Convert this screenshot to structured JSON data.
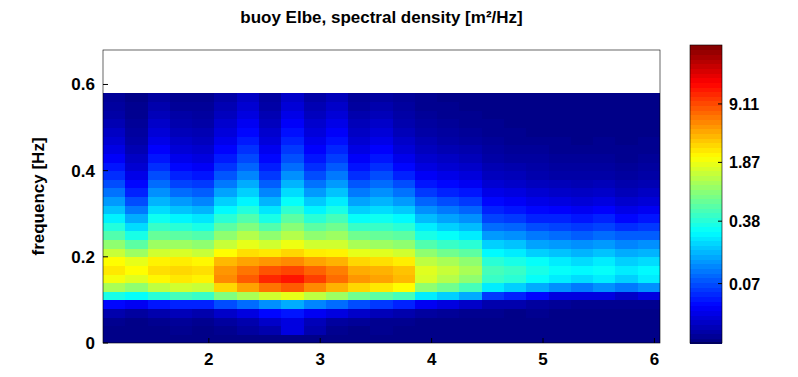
{
  "chart_data": {
    "type": "heatmap",
    "title": "buoy Elbe, spectral density [m²/Hz]",
    "y_label": "frequency [Hz]",
    "xlim": [
      1.05,
      6.05
    ],
    "ylim": [
      0,
      0.68
    ],
    "xticks": [
      2,
      3,
      4,
      5,
      6
    ],
    "yticks": [
      0,
      0.2,
      0.4,
      0.6
    ],
    "x_edges": [
      1.05,
      1.25,
      1.45,
      1.65,
      1.85,
      2.05,
      2.25,
      2.45,
      2.65,
      2.85,
      3.05,
      3.25,
      3.45,
      3.65,
      3.85,
      4.05,
      4.25,
      4.45,
      4.65,
      4.85,
      5.05,
      5.25,
      5.45,
      5.65,
      5.85,
      6.05
    ],
    "y_edges": [
      0,
      0.02,
      0.04,
      0.06,
      0.08,
      0.1,
      0.12,
      0.14,
      0.16,
      0.18,
      0.2,
      0.22,
      0.24,
      0.26,
      0.28,
      0.3,
      0.32,
      0.34,
      0.36,
      0.38,
      0.4,
      0.42,
      0.44,
      0.46,
      0.48,
      0.5,
      0.52,
      0.54,
      0.56,
      0.58
    ],
    "values": [
      [
        0.015,
        0.015,
        0.015,
        0.015,
        0.015,
        0.015,
        0.015,
        0.015,
        0.015,
        0.015,
        0.015,
        0.015,
        0.015,
        0.015,
        0.015,
        0.015,
        0.015,
        0.015,
        0.015,
        0.015,
        0.015,
        0.015,
        0.015,
        0.015,
        0.015
      ],
      [
        0.015,
        0.015,
        0.015,
        0.016,
        0.015,
        0.016,
        0.018,
        0.02,
        0.03,
        0.02,
        0.016,
        0.015,
        0.016,
        0.015,
        0.015,
        0.015,
        0.015,
        0.015,
        0.015,
        0.015,
        0.015,
        0.015,
        0.015,
        0.015,
        0.015
      ],
      [
        0.016,
        0.015,
        0.016,
        0.017,
        0.016,
        0.018,
        0.02,
        0.025,
        0.03,
        0.022,
        0.018,
        0.017,
        0.016,
        0.016,
        0.015,
        0.015,
        0.015,
        0.015,
        0.015,
        0.015,
        0.015,
        0.015,
        0.015,
        0.015,
        0.015
      ],
      [
        0.02,
        0.018,
        0.02,
        0.022,
        0.02,
        0.025,
        0.03,
        0.04,
        0.045,
        0.035,
        0.03,
        0.025,
        0.022,
        0.02,
        0.018,
        0.017,
        0.016,
        0.016,
        0.015,
        0.016,
        0.015,
        0.015,
        0.015,
        0.015,
        0.015
      ],
      [
        0.04,
        0.035,
        0.045,
        0.05,
        0.05,
        0.07,
        0.09,
        0.12,
        0.15,
        0.11,
        0.09,
        0.07,
        0.06,
        0.05,
        0.035,
        0.03,
        0.025,
        0.02,
        0.02,
        0.018,
        0.017,
        0.016,
        0.016,
        0.016,
        0.016
      ],
      [
        0.35,
        0.3,
        0.4,
        0.5,
        0.45,
        0.8,
        1.1,
        1.5,
        1.8,
        1.3,
        1.0,
        0.7,
        0.6,
        0.5,
        0.25,
        0.2,
        0.15,
        0.06,
        0.05,
        0.04,
        0.03,
        0.03,
        0.03,
        0.025,
        0.03
      ],
      [
        1.1,
        0.9,
        1.3,
        1.5,
        1.4,
        3.0,
        4.5,
        6.5,
        8.0,
        5.5,
        4.0,
        3.0,
        2.6,
        2.2,
        0.9,
        0.7,
        0.5,
        0.25,
        0.2,
        0.15,
        0.12,
        0.1,
        0.12,
        0.1,
        0.12
      ],
      [
        2.0,
        1.7,
        2.3,
        2.6,
        2.4,
        5.5,
        8.0,
        12.0,
        14.0,
        10.0,
        7.0,
        5.0,
        4.5,
        3.8,
        1.6,
        1.2,
        0.9,
        0.45,
        0.4,
        0.3,
        0.25,
        0.22,
        0.25,
        0.2,
        0.25
      ],
      [
        2.6,
        2.2,
        2.8,
        3.0,
        2.8,
        5.0,
        6.5,
        8.5,
        9.5,
        7.5,
        6.0,
        4.2,
        4.0,
        3.5,
        1.7,
        1.4,
        1.1,
        0.5,
        0.45,
        0.35,
        0.3,
        0.28,
        0.3,
        0.25,
        0.28
      ],
      [
        2.2,
        1.8,
        2.4,
        2.5,
        2.3,
        3.8,
        4.5,
        5.0,
        5.5,
        4.5,
        4.0,
        3.0,
        2.8,
        2.5,
        1.3,
        1.1,
        0.9,
        0.4,
        0.35,
        0.3,
        0.25,
        0.22,
        0.25,
        0.2,
        0.22
      ],
      [
        1.4,
        1.0,
        1.5,
        1.6,
        1.4,
        2.2,
        2.8,
        2.6,
        3.0,
        2.5,
        2.4,
        1.8,
        1.7,
        1.5,
        0.9,
        0.7,
        0.6,
        0.28,
        0.25,
        0.2,
        0.18,
        0.16,
        0.18,
        0.15,
        0.16
      ],
      [
        0.9,
        0.6,
        1.0,
        1.0,
        0.9,
        1.4,
        1.8,
        1.5,
        1.9,
        1.5,
        1.5,
        1.1,
        1.0,
        0.9,
        0.55,
        0.45,
        0.4,
        0.2,
        0.18,
        0.14,
        0.13,
        0.12,
        0.13,
        0.11,
        0.12
      ],
      [
        0.55,
        0.35,
        0.65,
        0.6,
        0.55,
        0.9,
        1.2,
        0.9,
        1.2,
        0.9,
        1.0,
        0.7,
        0.65,
        0.6,
        0.35,
        0.3,
        0.25,
        0.13,
        0.12,
        0.1,
        0.09,
        0.08,
        0.09,
        0.08,
        0.08
      ],
      [
        0.38,
        0.22,
        0.45,
        0.4,
        0.35,
        0.6,
        0.8,
        0.55,
        0.85,
        0.6,
        0.7,
        0.45,
        0.45,
        0.4,
        0.25,
        0.2,
        0.17,
        0.09,
        0.085,
        0.07,
        0.065,
        0.06,
        0.065,
        0.055,
        0.06
      ],
      [
        0.26,
        0.15,
        0.32,
        0.27,
        0.24,
        0.4,
        0.55,
        0.35,
        0.6,
        0.4,
        0.5,
        0.3,
        0.32,
        0.28,
        0.17,
        0.14,
        0.12,
        0.065,
        0.06,
        0.05,
        0.05,
        0.045,
        0.05,
        0.04,
        0.045
      ],
      [
        0.18,
        0.1,
        0.22,
        0.18,
        0.16,
        0.28,
        0.38,
        0.24,
        0.42,
        0.27,
        0.35,
        0.2,
        0.22,
        0.19,
        0.12,
        0.1,
        0.085,
        0.05,
        0.045,
        0.04,
        0.038,
        0.035,
        0.038,
        0.032,
        0.035
      ],
      [
        0.13,
        0.07,
        0.16,
        0.13,
        0.11,
        0.2,
        0.27,
        0.16,
        0.3,
        0.19,
        0.25,
        0.14,
        0.16,
        0.13,
        0.085,
        0.07,
        0.06,
        0.04,
        0.036,
        0.032,
        0.03,
        0.028,
        0.03,
        0.026,
        0.028
      ],
      [
        0.095,
        0.05,
        0.12,
        0.09,
        0.08,
        0.14,
        0.2,
        0.11,
        0.22,
        0.13,
        0.18,
        0.1,
        0.12,
        0.095,
        0.06,
        0.05,
        0.045,
        0.032,
        0.03,
        0.027,
        0.025,
        0.024,
        0.025,
        0.022,
        0.024
      ],
      [
        0.07,
        0.04,
        0.09,
        0.065,
        0.06,
        0.1,
        0.15,
        0.08,
        0.16,
        0.095,
        0.13,
        0.075,
        0.09,
        0.07,
        0.045,
        0.04,
        0.035,
        0.027,
        0.025,
        0.023,
        0.022,
        0.021,
        0.022,
        0.02,
        0.021
      ],
      [
        0.055,
        0.032,
        0.07,
        0.05,
        0.045,
        0.075,
        0.11,
        0.06,
        0.12,
        0.07,
        0.1,
        0.055,
        0.07,
        0.05,
        0.036,
        0.032,
        0.029,
        0.023,
        0.022,
        0.02,
        0.019,
        0.019,
        0.019,
        0.018,
        0.019
      ],
      [
        0.045,
        0.027,
        0.055,
        0.04,
        0.036,
        0.058,
        0.085,
        0.048,
        0.09,
        0.055,
        0.078,
        0.044,
        0.055,
        0.04,
        0.03,
        0.027,
        0.025,
        0.021,
        0.02,
        0.019,
        0.018,
        0.018,
        0.018,
        0.017,
        0.018
      ],
      [
        0.037,
        0.024,
        0.045,
        0.033,
        0.03,
        0.047,
        0.068,
        0.04,
        0.072,
        0.045,
        0.062,
        0.037,
        0.045,
        0.033,
        0.026,
        0.024,
        0.022,
        0.019,
        0.018,
        0.018,
        0.017,
        0.017,
        0.017,
        0.016,
        0.017
      ],
      [
        0.031,
        0.021,
        0.038,
        0.028,
        0.026,
        0.039,
        0.056,
        0.034,
        0.06,
        0.038,
        0.051,
        0.031,
        0.038,
        0.028,
        0.023,
        0.021,
        0.02,
        0.018,
        0.017,
        0.017,
        0.016,
        0.016,
        0.016,
        0.016,
        0.016
      ],
      [
        0.027,
        0.019,
        0.032,
        0.025,
        0.023,
        0.033,
        0.047,
        0.029,
        0.05,
        0.033,
        0.043,
        0.027,
        0.032,
        0.025,
        0.021,
        0.019,
        0.018,
        0.017,
        0.016,
        0.016,
        0.016,
        0.015,
        0.016,
        0.015,
        0.016
      ],
      [
        0.024,
        0.018,
        0.028,
        0.022,
        0.021,
        0.029,
        0.04,
        0.026,
        0.043,
        0.029,
        0.037,
        0.024,
        0.028,
        0.022,
        0.019,
        0.018,
        0.017,
        0.016,
        0.016,
        0.015,
        0.015,
        0.015,
        0.015,
        0.015,
        0.015
      ],
      [
        0.021,
        0.017,
        0.025,
        0.02,
        0.019,
        0.026,
        0.035,
        0.023,
        0.037,
        0.026,
        0.032,
        0.022,
        0.025,
        0.02,
        0.018,
        0.017,
        0.016,
        0.016,
        0.015,
        0.015,
        0.015,
        0.015,
        0.015,
        0.015,
        0.015
      ],
      [
        0.019,
        0.016,
        0.022,
        0.019,
        0.018,
        0.023,
        0.03,
        0.021,
        0.032,
        0.023,
        0.028,
        0.02,
        0.022,
        0.019,
        0.017,
        0.016,
        0.016,
        0.015,
        0.015,
        0.015,
        0.015,
        0.015,
        0.015,
        0.015,
        0.015
      ],
      [
        0.018,
        0.016,
        0.02,
        0.017,
        0.017,
        0.021,
        0.027,
        0.019,
        0.028,
        0.021,
        0.025,
        0.018,
        0.02,
        0.018,
        0.016,
        0.016,
        0.015,
        0.015,
        0.015,
        0.015,
        0.015,
        0.015,
        0.015,
        0.015,
        0.015
      ],
      [
        0.017,
        0.015,
        0.018,
        0.016,
        0.016,
        0.019,
        0.024,
        0.018,
        0.025,
        0.019,
        0.022,
        0.017,
        0.018,
        0.017,
        0.016,
        0.015,
        0.015,
        0.015,
        0.015,
        0.015,
        0.015,
        0.015,
        0.015,
        0.015,
        0.015
      ]
    ],
    "colorbar": {
      "lim": [
        0.014,
        45
      ],
      "ticks": [
        0.07,
        0.38,
        1.87,
        9.11
      ],
      "log": true
    }
  }
}
